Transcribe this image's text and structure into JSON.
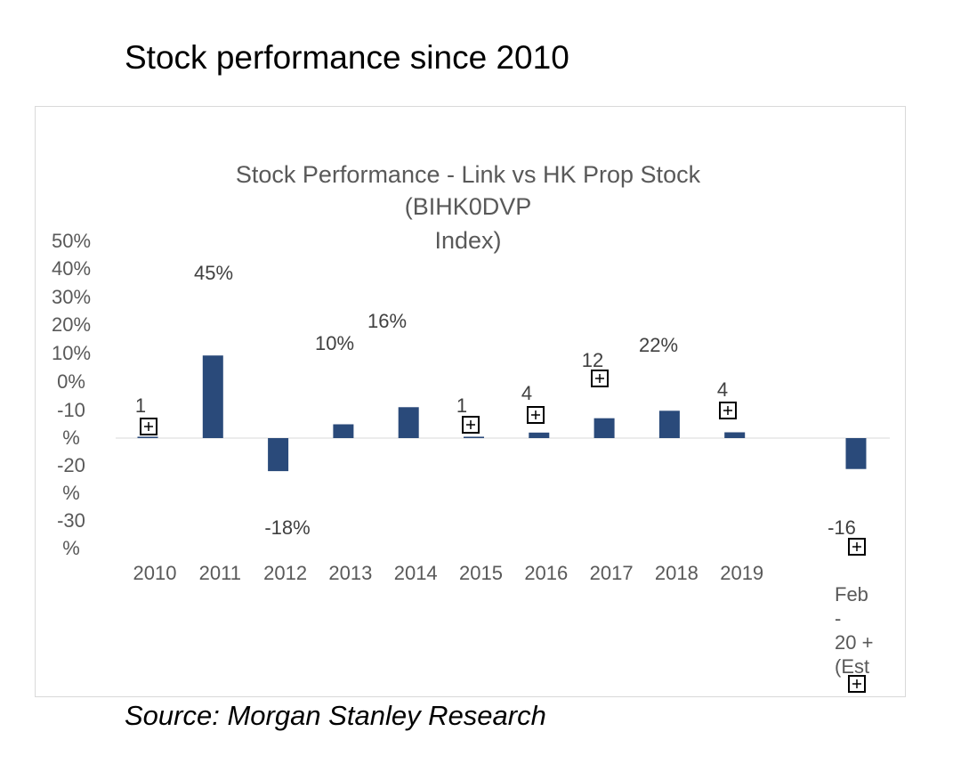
{
  "page": {
    "title": "Stock performance since 2010",
    "source": "Source: Morgan Stanley Research"
  },
  "chart_data": {
    "type": "bar",
    "title": "Stock Performance - Link vs HK Prop Stock (BIHK0DVP Index)",
    "title_lines": [
      "Stock Performance - Link vs HK Prop Stock",
      "(BIHK0DVP",
      "Index)"
    ],
    "xlabel": "",
    "ylabel": "",
    "ylim": [
      -30,
      50
    ],
    "y_ticks": [
      {
        "value": 50,
        "lines": [
          "50%"
        ]
      },
      {
        "value": 40,
        "lines": [
          "40%"
        ]
      },
      {
        "value": 30,
        "lines": [
          "30%"
        ]
      },
      {
        "value": 20,
        "lines": [
          "20%"
        ]
      },
      {
        "value": 10,
        "lines": [
          "10%"
        ]
      },
      {
        "value": 0,
        "lines": [
          "0%"
        ]
      },
      {
        "value": -10,
        "lines": [
          "-10",
          "%"
        ]
      },
      {
        "value": -20,
        "lines": [
          "-20",
          "%"
        ]
      },
      {
        "value": -30,
        "lines": [
          "-30",
          "%"
        ]
      }
    ],
    "categories": [
      "2010",
      "2011",
      "2012",
      "2013",
      "2014",
      "2015",
      "2016",
      "2017",
      "2018",
      "2019",
      "Feb-20 + (Est)"
    ],
    "category_label_lines": [
      [
        "2010"
      ],
      [
        "2011"
      ],
      [
        "2012"
      ],
      [
        "2013"
      ],
      [
        "2014"
      ],
      [
        "2015"
      ],
      [
        "2016"
      ],
      [
        "2017"
      ],
      [
        "2018"
      ],
      [
        "2019"
      ],
      [
        "Feb",
        "-",
        "20 +",
        "(Est"
      ]
    ],
    "series": [
      {
        "name": "Link vs HK Prop Stock",
        "color": "#2a4a7a",
        "values": [
          1,
          45,
          -18,
          10,
          16,
          1,
          4,
          12,
          22,
          4,
          -16
        ],
        "data_labels": [
          "1",
          "45%",
          "-18%",
          "10%",
          "16%",
          "1",
          "4",
          "12",
          "22%",
          "4",
          "-16"
        ]
      }
    ],
    "grid": false,
    "legend": "none",
    "axis_line_color": "#d9d9d9",
    "label_color": "#595959"
  }
}
